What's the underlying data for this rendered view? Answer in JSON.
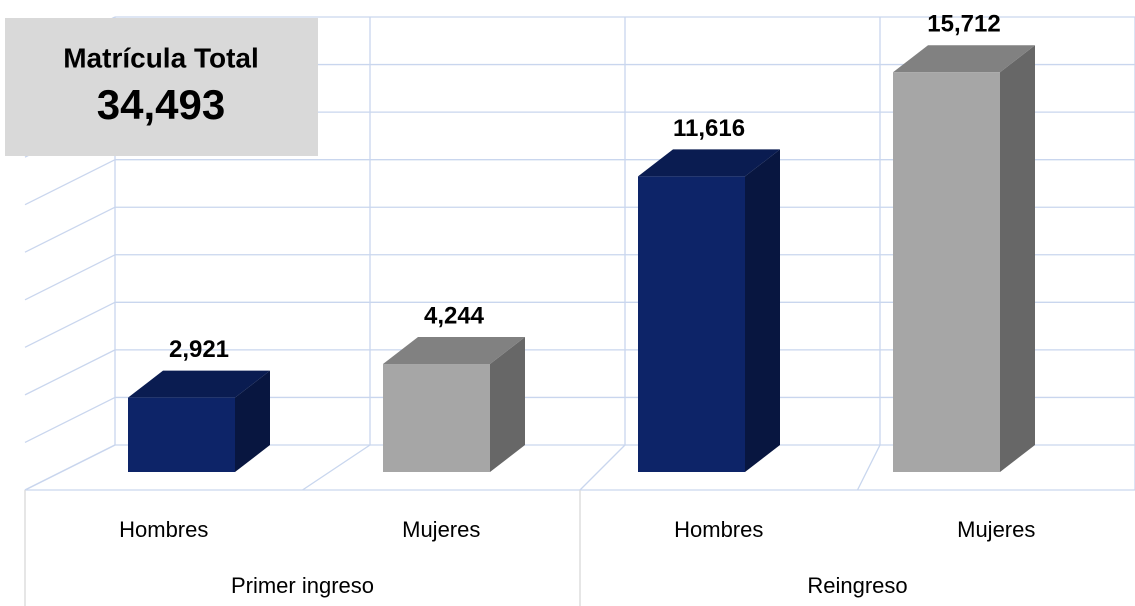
{
  "chart_data": {
    "type": "bar3d",
    "categories": [
      "Hombres",
      "Mujeres",
      "Hombres",
      "Mujeres"
    ],
    "groups": [
      "Primer ingreso",
      "Reingreso"
    ],
    "values": [
      2921,
      4244,
      11616,
      15712
    ],
    "value_labels": [
      "2,921",
      "4,244",
      "11,616",
      "15,712"
    ],
    "colors": [
      "#0d2468",
      "#a6a6a6",
      "#0d2468",
      "#a6a6a6"
    ],
    "ylim": [
      0,
      18000
    ],
    "yticks": [
      0,
      2000,
      4000,
      6000,
      8000,
      10000,
      12000,
      14000,
      16000,
      18000
    ],
    "grid": true,
    "annotations": [
      "Matrícula Total",
      "34,493"
    ]
  }
}
